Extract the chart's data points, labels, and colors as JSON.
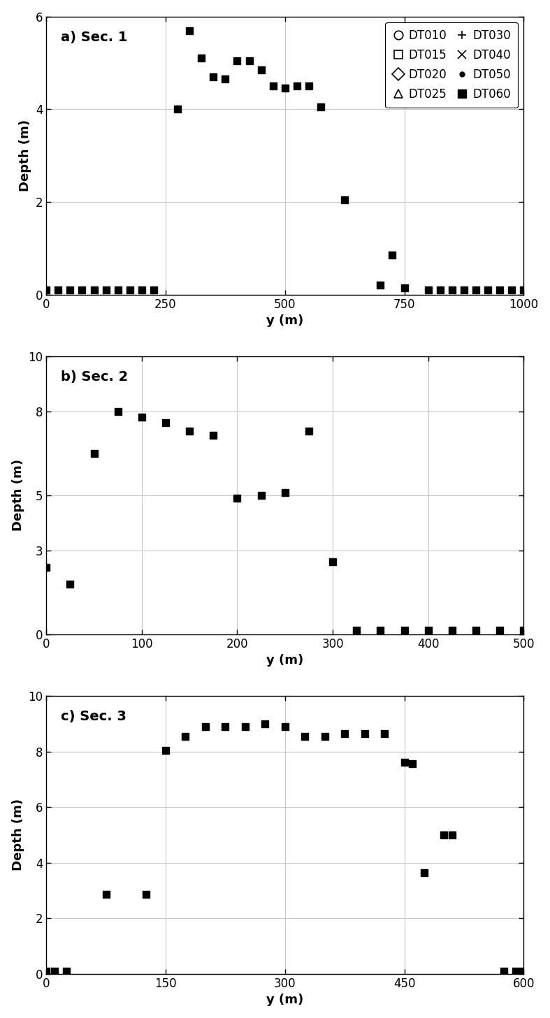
{
  "sec1": {
    "title": "a) Sec. 1",
    "xlim": [
      0,
      1000
    ],
    "ylim": [
      0,
      6
    ],
    "xticks": [
      0,
      250,
      500,
      750,
      1000
    ],
    "yticks": [
      0,
      2,
      4,
      6
    ],
    "y": [
      0,
      25,
      50,
      75,
      100,
      125,
      150,
      175,
      200,
      225,
      275,
      300,
      325,
      350,
      375,
      400,
      425,
      450,
      475,
      500,
      525,
      550,
      575,
      625,
      700,
      725,
      750,
      800,
      825,
      850,
      875,
      900,
      925,
      950,
      975,
      1000
    ],
    "depth": [
      0.1,
      0.1,
      0.1,
      0.1,
      0.1,
      0.1,
      0.1,
      0.1,
      0.1,
      0.1,
      4.0,
      5.7,
      5.1,
      4.7,
      4.65,
      5.05,
      5.05,
      4.85,
      4.5,
      4.45,
      4.5,
      4.5,
      4.05,
      2.05,
      0.2,
      0.85,
      0.15,
      0.1,
      0.1,
      0.1,
      0.1,
      0.1,
      0.1,
      0.1,
      0.1,
      0.1
    ]
  },
  "sec2": {
    "title": "b) Sec. 2",
    "xlim": [
      0,
      500
    ],
    "ylim": [
      0,
      10
    ],
    "xticks": [
      0,
      100,
      200,
      300,
      400,
      500
    ],
    "yticks": [
      0,
      3,
      5,
      8,
      10
    ],
    "y": [
      0,
      25,
      50,
      75,
      100,
      125,
      150,
      175,
      200,
      225,
      250,
      275,
      300,
      325,
      350,
      375,
      400,
      425,
      450,
      475,
      500
    ],
    "depth": [
      2.4,
      1.8,
      6.5,
      8.0,
      7.8,
      7.6,
      7.3,
      7.15,
      4.9,
      5.0,
      5.1,
      7.3,
      2.6,
      0.15,
      0.15,
      0.15,
      0.15,
      0.15,
      0.15,
      0.15,
      0.15
    ]
  },
  "sec3": {
    "title": "c) Sec. 3",
    "xlim": [
      0,
      600
    ],
    "ylim": [
      0,
      10
    ],
    "xticks": [
      0,
      150,
      300,
      450,
      600
    ],
    "yticks": [
      0,
      2,
      4,
      6,
      8,
      10
    ],
    "y": [
      0,
      10,
      25,
      75,
      125,
      150,
      175,
      200,
      225,
      250,
      275,
      300,
      325,
      350,
      375,
      400,
      425,
      450,
      460,
      475,
      500,
      510,
      575,
      590,
      600
    ],
    "depth": [
      0.1,
      0.1,
      0.1,
      2.85,
      2.85,
      8.05,
      8.55,
      8.9,
      8.9,
      8.9,
      9.0,
      8.9,
      8.55,
      8.55,
      8.65,
      8.65,
      8.65,
      7.6,
      7.55,
      3.65,
      5.0,
      5.0,
      0.1,
      0.1,
      0.1
    ]
  },
  "legend_entries": [
    {
      "label": "DT010",
      "marker": "o",
      "filled": false
    },
    {
      "label": "DT015",
      "marker": "s",
      "filled": false
    },
    {
      "label": "DT020",
      "marker": "D",
      "filled": false
    },
    {
      "label": "DT025",
      "marker": "^",
      "filled": false
    },
    {
      "label": "DT030",
      "marker": "+",
      "filled": false
    },
    {
      "label": "DT040",
      "marker": "x",
      "filled": false
    },
    {
      "label": "DT050",
      "marker": "o",
      "filled": true,
      "small": true
    },
    {
      "label": "DT060",
      "marker": "s",
      "filled": true,
      "small": false
    }
  ],
  "marker_color": "#000000",
  "marker_size": 7,
  "xlabel": "y (m)",
  "ylabel": "Depth (m)",
  "grid_color": "#c8c8c8",
  "bg_color": "#ffffff",
  "title_fontsize": 14,
  "label_fontsize": 13,
  "tick_fontsize": 12,
  "legend_fontsize": 12
}
